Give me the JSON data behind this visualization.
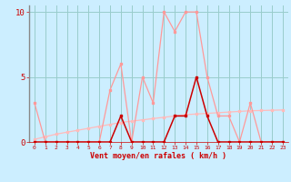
{
  "hours": [
    0,
    1,
    2,
    3,
    4,
    5,
    6,
    7,
    8,
    9,
    10,
    11,
    12,
    13,
    14,
    15,
    16,
    17,
    18,
    19,
    20,
    21,
    22,
    23
  ],
  "rafales": [
    3,
    0,
    0,
    0,
    0,
    0,
    0,
    4,
    6,
    0,
    5,
    3,
    10,
    8.5,
    10,
    10,
    5,
    2,
    2,
    0,
    3,
    0,
    0,
    0
  ],
  "vent_moyen": [
    0,
    0,
    0,
    0,
    0,
    0,
    0,
    0,
    2,
    0,
    0,
    0,
    0,
    2,
    2,
    5,
    2,
    0,
    0,
    0,
    0,
    0,
    0,
    0
  ],
  "trend": [
    0.2,
    0.4,
    0.6,
    0.75,
    0.9,
    1.05,
    1.2,
    1.35,
    1.5,
    1.6,
    1.7,
    1.8,
    1.9,
    2.0,
    2.1,
    2.15,
    2.2,
    2.25,
    2.3,
    2.35,
    2.4,
    2.42,
    2.44,
    2.46
  ],
  "bg_color": "#cceeff",
  "line_color_rafales": "#ff9999",
  "line_color_moyen": "#cc0000",
  "line_color_trend": "#ffbbbb",
  "grid_color": "#99cccc",
  "text_color": "#cc0000",
  "xlabel": "Vent moyen/en rafales ( km/h )",
  "ylim": [
    0,
    10.5
  ],
  "xlim": [
    -0.5,
    23.5
  ],
  "yticks": [
    0,
    5,
    10
  ],
  "ytick_labels": [
    "0",
    "5",
    "10"
  ]
}
